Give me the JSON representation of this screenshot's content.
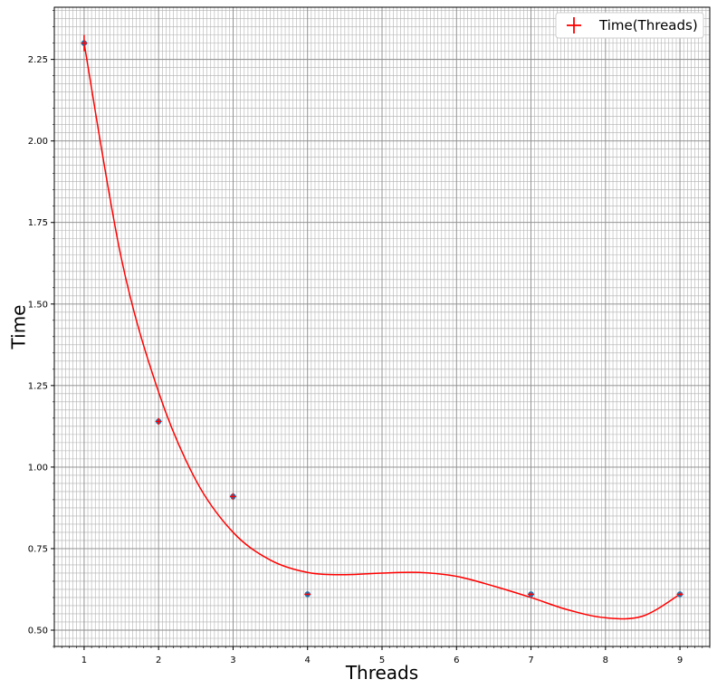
{
  "chart_data": {
    "type": "scatter",
    "title": "",
    "xlabel": "Threads",
    "ylabel": "Time",
    "xlim": [
      0.6,
      9.4
    ],
    "ylim": [
      0.45,
      2.41
    ],
    "xticks": [
      1,
      2,
      3,
      4,
      5,
      6,
      7,
      8,
      9
    ],
    "yticks": [
      0.5,
      0.75,
      1.0,
      1.25,
      1.5,
      1.75,
      2.0,
      2.25
    ],
    "ytick_labels": [
      "0.50",
      "0.75",
      "1.00",
      "1.25",
      "1.50",
      "1.75",
      "2.00",
      "2.25"
    ],
    "grid": true,
    "minor_grid": true,
    "legend": {
      "position": "top-right",
      "entries": [
        "Time(Threads)"
      ]
    },
    "series": [
      {
        "name": "Time(Threads)",
        "kind": "points",
        "marker_color": "#1f77b4",
        "errorbar_color": "#ff0000",
        "x": [
          1,
          2,
          3,
          4,
          7,
          9
        ],
        "y": [
          2.3,
          1.14,
          0.91,
          0.61,
          0.61,
          0.61
        ],
        "yerr": [
          0.025,
          0.01,
          0.01,
          0.005,
          0.005,
          0.005
        ]
      },
      {
        "kind": "fit_line",
        "color": "#ff0000",
        "x": [
          1.0,
          1.5,
          2.0,
          2.5,
          3.0,
          3.5,
          4.0,
          4.5,
          5.0,
          5.5,
          6.0,
          6.5,
          7.0,
          7.5,
          8.0,
          8.5,
          9.0
        ],
        "y": [
          2.3,
          1.64,
          1.23,
          0.96,
          0.8,
          0.715,
          0.677,
          0.67,
          0.675,
          0.677,
          0.665,
          0.635,
          0.6,
          0.562,
          0.538,
          0.543,
          0.61
        ]
      }
    ]
  }
}
